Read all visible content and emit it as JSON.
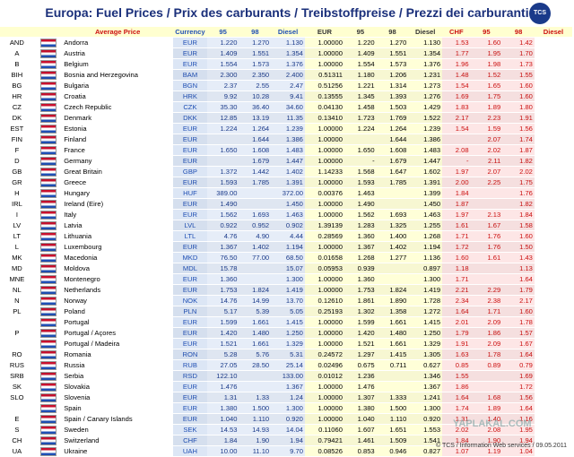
{
  "header": {
    "title": "Europa: Fuel Prices / Prix des carburants / Treibstoffpreise / Prezzi dei carburanti",
    "logo": "TCS"
  },
  "table": {
    "columns": [
      "Average Price",
      "Currency",
      "95",
      "98",
      "Diesel",
      "EUR",
      "95",
      "98",
      "Diesel",
      "CHF",
      "95",
      "98",
      "Diesel"
    ],
    "rows": [
      [
        "AND",
        "Andorra",
        "EUR",
        "1.220",
        "1.270",
        "1.130",
        "1.00000",
        "1.220",
        "1.270",
        "1.130",
        "1.53",
        "1.60",
        "1.42"
      ],
      [
        "A",
        "Austria",
        "EUR",
        "1.409",
        "1.551",
        "1.354",
        "1.00000",
        "1.409",
        "1.551",
        "1.354",
        "1.77",
        "1.95",
        "1.70"
      ],
      [
        "B",
        "Belgium",
        "EUR",
        "1.554",
        "1.573",
        "1.376",
        "1.00000",
        "1.554",
        "1.573",
        "1.376",
        "1.96",
        "1.98",
        "1.73"
      ],
      [
        "BIH",
        "Bosnia and Herzegovina",
        "BAM",
        "2.300",
        "2.350",
        "2.400",
        "0.51311",
        "1.180",
        "1.206",
        "1.231",
        "1.48",
        "1.52",
        "1.55"
      ],
      [
        "BG",
        "Bulgaria",
        "BGN",
        "2.37",
        "2.55",
        "2.47",
        "0.51256",
        "1.221",
        "1.314",
        "1.273",
        "1.54",
        "1.65",
        "1.60"
      ],
      [
        "HR",
        "Croatia",
        "HRK",
        "9.92",
        "10.28",
        "9.41",
        "0.13555",
        "1.345",
        "1.393",
        "1.276",
        "1.69",
        "1.75",
        "1.60"
      ],
      [
        "CZ",
        "Czech Republic",
        "CZK",
        "35.30",
        "36.40",
        "34.60",
        "0.04130",
        "1.458",
        "1.503",
        "1.429",
        "1.83",
        "1.89",
        "1.80"
      ],
      [
        "DK",
        "Denmark",
        "DKK",
        "12.85",
        "13.19",
        "11.35",
        "0.13410",
        "1.723",
        "1.769",
        "1.522",
        "2.17",
        "2.23",
        "1.91"
      ],
      [
        "EST",
        "Estonia",
        "EUR",
        "1.224",
        "1.264",
        "1.239",
        "1.00000",
        "1.224",
        "1.264",
        "1.239",
        "1.54",
        "1.59",
        "1.56"
      ],
      [
        "FIN",
        "Finland",
        "EUR",
        null,
        "1.644",
        "1.386",
        "1.00000",
        null,
        "1.644",
        "1.386",
        null,
        "2.07",
        "1.74"
      ],
      [
        "F",
        "France",
        "EUR",
        "1.650",
        "1.608",
        "1.483",
        "1.00000",
        "1.650",
        "1.608",
        "1.483",
        "2.08",
        "2.02",
        "1.87"
      ],
      [
        "D",
        "Germany",
        "EUR",
        null,
        "1.679",
        "1.447",
        "1.00000",
        "-",
        "1.679",
        "1.447",
        "-",
        "2.11",
        "1.82"
      ],
      [
        "GB",
        "Great Britain",
        "GBP",
        "1.372",
        "1.442",
        "1.402",
        "1.14233",
        "1.568",
        "1.647",
        "1.602",
        "1.97",
        "2.07",
        "2.02"
      ],
      [
        "GR",
        "Greece",
        "EUR",
        "1.593",
        "1.785",
        "1.391",
        "1.00000",
        "1.593",
        "1.785",
        "1.391",
        "2.00",
        "2.25",
        "1.75"
      ],
      [
        "H",
        "Hungary",
        "HUF",
        "389.00",
        null,
        "372.00",
        "0.00376",
        "1.463",
        null,
        "1.399",
        "1.84",
        null,
        "1.76"
      ],
      [
        "IRL",
        "Ireland (Eire)",
        "EUR",
        "1.490",
        null,
        "1.450",
        "1.00000",
        "1.490",
        null,
        "1.450",
        "1.87",
        null,
        "1.82"
      ],
      [
        "I",
        "Italy",
        "EUR",
        "1.562",
        "1.693",
        "1.463",
        "1.00000",
        "1.562",
        "1.693",
        "1.463",
        "1.97",
        "2.13",
        "1.84"
      ],
      [
        "LV",
        "Latvia",
        "LVL",
        "0.922",
        "0.952",
        "0.902",
        "1.39139",
        "1.283",
        "1.325",
        "1.255",
        "1.61",
        "1.67",
        "1.58"
      ],
      [
        "LT",
        "Lithuania",
        "LTL",
        "4.76",
        "4.90",
        "4.44",
        "0.28569",
        "1.360",
        "1.400",
        "1.268",
        "1.71",
        "1.76",
        "1.60"
      ],
      [
        "L",
        "Luxembourg",
        "EUR",
        "1.367",
        "1.402",
        "1.194",
        "1.00000",
        "1.367",
        "1.402",
        "1.194",
        "1.72",
        "1.76",
        "1.50"
      ],
      [
        "MK",
        "Macedonia",
        "MKD",
        "76.50",
        "77.00",
        "68.50",
        "0.01658",
        "1.268",
        "1.277",
        "1.136",
        "1.60",
        "1.61",
        "1.43"
      ],
      [
        "MD",
        "Moldova",
        "MDL",
        "15.78",
        null,
        "15.07",
        "0.05953",
        "0.939",
        null,
        "0.897",
        "1.18",
        null,
        "1.13"
      ],
      [
        "MNE",
        "Montenegro",
        "EUR",
        "1.360",
        null,
        "1.300",
        "1.00000",
        "1.360",
        null,
        "1.300",
        "1.71",
        null,
        "1.64"
      ],
      [
        "NL",
        "Netherlands",
        "EUR",
        "1.753",
        "1.824",
        "1.419",
        "1.00000",
        "1.753",
        "1.824",
        "1.419",
        "2.21",
        "2.29",
        "1.79"
      ],
      [
        "N",
        "Norway",
        "NOK",
        "14.76",
        "14.99",
        "13.70",
        "0.12610",
        "1.861",
        "1.890",
        "1.728",
        "2.34",
        "2.38",
        "2.17"
      ],
      [
        "PL",
        "Poland",
        "PLN",
        "5.17",
        "5.39",
        "5.05",
        "0.25193",
        "1.302",
        "1.358",
        "1.272",
        "1.64",
        "1.71",
        "1.60"
      ],
      [
        null,
        "Portugal",
        "EUR",
        "1.599",
        "1.661",
        "1.415",
        "1.00000",
        "1.599",
        "1.661",
        "1.415",
        "2.01",
        "2.09",
        "1.78"
      ],
      [
        "P",
        "Portugal / Açores",
        "EUR",
        "1.420",
        "1.480",
        "1.250",
        "1.00000",
        "1.420",
        "1.480",
        "1.250",
        "1.79",
        "1.86",
        "1.57"
      ],
      [
        null,
        "Portugal / Madeira",
        "EUR",
        "1.521",
        "1.661",
        "1.329",
        "1.00000",
        "1.521",
        "1.661",
        "1.329",
        "1.91",
        "2.09",
        "1.67"
      ],
      [
        "RO",
        "Romania",
        "RON",
        "5.28",
        "5.76",
        "5.31",
        "0.24572",
        "1.297",
        "1.415",
        "1.305",
        "1.63",
        "1.78",
        "1.64"
      ],
      [
        "RUS",
        "Russia",
        "RUB",
        "27.05",
        "28.50",
        "25.14",
        "0.02496",
        "0.675",
        "0.711",
        "0.627",
        "0.85",
        "0.89",
        "0.79"
      ],
      [
        "SRB",
        "Serbia",
        "RSD",
        "122.10",
        null,
        "133.00",
        "0.01012",
        "1.236",
        null,
        "1.346",
        "1.55",
        null,
        "1.69"
      ],
      [
        "SK",
        "Slovakia",
        "EUR",
        "1.476",
        null,
        "1.367",
        "1.00000",
        "1.476",
        null,
        "1.367",
        "1.86",
        null,
        "1.72"
      ],
      [
        "SLO",
        "Slovenia",
        "EUR",
        "1.31",
        "1.33",
        "1.24",
        "1.00000",
        "1.307",
        "1.333",
        "1.241",
        "1.64",
        "1.68",
        "1.56"
      ],
      [
        null,
        "Spain",
        "EUR",
        "1.380",
        "1.500",
        "1.300",
        "1.00000",
        "1.380",
        "1.500",
        "1.300",
        "1.74",
        "1.89",
        "1.64"
      ],
      [
        "E",
        "Spain / Canary Islands",
        "EUR",
        "1.040",
        "1.110",
        "0.920",
        "1.00000",
        "1.040",
        "1.110",
        "0.920",
        "1.31",
        "1.40",
        "1.16"
      ],
      [
        "S",
        "Sweden",
        "SEK",
        "14.53",
        "14.93",
        "14.04",
        "0.11060",
        "1.607",
        "1.651",
        "1.553",
        "2.02",
        "2.08",
        "1.95"
      ],
      [
        "CH",
        "Switzerland",
        "CHF",
        "1.84",
        "1.90",
        "1.94",
        "0.79421",
        "1.461",
        "1.509",
        "1.541",
        "1.84",
        "1.90",
        "1.94"
      ],
      [
        "UA",
        "Ukraine",
        "UAH",
        "10.00",
        "11.10",
        "9.70",
        "0.08526",
        "0.853",
        "0.946",
        "0.827",
        "1.07",
        "1.19",
        "1.04"
      ]
    ]
  },
  "watermark": "YAPLAKAL.COM",
  "footer": "© TCS / Information Web services / 09.05.2011"
}
